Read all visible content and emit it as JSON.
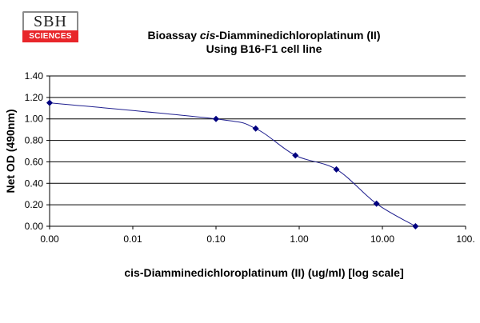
{
  "logo": {
    "top": "SBH",
    "bottom": "SCIENCES"
  },
  "chart_data": {
    "type": "line",
    "title_line1_prefix": "Bioassay ",
    "title_line1_italic": "cis",
    "title_line1_suffix": "-Diamminedichloroplatinum (II)",
    "title_line2": "Using B16-F1 cell line",
    "xlabel": "cis-Diamminedichloroplatinum (II) (ug/ml) [log scale]",
    "ylabel": "Net OD (490nm)",
    "x_scale": "log",
    "x_ticks": [
      "0.00",
      "0.01",
      "0.10",
      "1.00",
      "10.00",
      "100."
    ],
    "y_ticks": [
      "0.00",
      "0.20",
      "0.40",
      "0.60",
      "0.80",
      "1.00",
      "1.20",
      "1.40"
    ],
    "ylim": [
      0,
      1.4
    ],
    "grid": "horizontal",
    "line_color": "#1f1f8f",
    "marker_color": "#00007f",
    "series": [
      {
        "x": [
          0.001,
          0.1,
          0.3,
          0.9,
          2.8,
          8.5,
          25
        ],
        "y": [
          1.15,
          1.0,
          0.91,
          0.66,
          0.53,
          0.21,
          0.0
        ]
      }
    ]
  }
}
